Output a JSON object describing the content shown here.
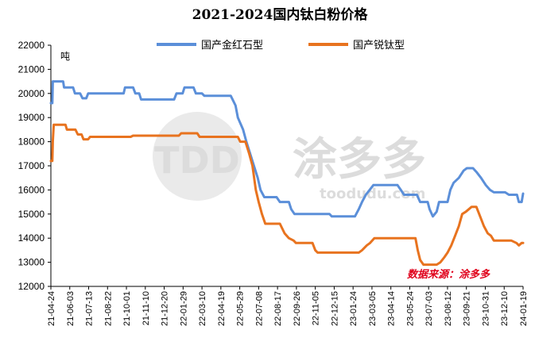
{
  "chart_data": {
    "type": "line",
    "title": "2021-2024国内钛白粉价格",
    "ylabel": "吨",
    "xlabel": "",
    "ylim": [
      12000,
      22000
    ],
    "yticks": [
      12000,
      13000,
      14000,
      15000,
      16000,
      17000,
      18000,
      19000,
      20000,
      21000,
      22000
    ],
    "x_range": [
      "2021-04-24",
      "2024-01-19"
    ],
    "xticks": [
      "21-04-24",
      "21-06-03",
      "21-07-13",
      "21-08-22",
      "21-10-01",
      "21-11-10",
      "21-12-20",
      "22-01-29",
      "22-03-10",
      "22-04-19",
      "22-05-29",
      "22-07-08",
      "22-08-17",
      "22-09-26",
      "22-11-05",
      "22-12-15",
      "23-01-24",
      "23-03-05",
      "23-04-14",
      "23-05-24",
      "23-07-03",
      "23-08-12",
      "23-09-21",
      "23-10-31",
      "23-12-10",
      "24-01-19"
    ],
    "legend_position": "top",
    "grid": false,
    "source_note": "数据来源：涂多多",
    "watermark": {
      "logo": "TDD",
      "text": "涂多多",
      "url": "toodudu.com"
    },
    "series": [
      {
        "name": "国产金红石型",
        "color": "#5b8fd9",
        "points": [
          [
            "2021-04-24",
            19600
          ],
          [
            "2021-04-27",
            19600
          ],
          [
            "2021-04-28",
            20500
          ],
          [
            "2021-05-20",
            20500
          ],
          [
            "2021-05-22",
            20250
          ],
          [
            "2021-06-10",
            20250
          ],
          [
            "2021-06-14",
            20000
          ],
          [
            "2021-06-25",
            20000
          ],
          [
            "2021-06-30",
            19800
          ],
          [
            "2021-07-08",
            19800
          ],
          [
            "2021-07-12",
            20000
          ],
          [
            "2021-09-25",
            20000
          ],
          [
            "2021-09-28",
            20250
          ],
          [
            "2021-10-15",
            20250
          ],
          [
            "2021-10-20",
            20000
          ],
          [
            "2021-10-28",
            20000
          ],
          [
            "2021-11-01",
            19750
          ],
          [
            "2022-01-10",
            19750
          ],
          [
            "2022-01-15",
            20000
          ],
          [
            "2022-01-28",
            20000
          ],
          [
            "2022-02-01",
            20250
          ],
          [
            "2022-02-20",
            20250
          ],
          [
            "2022-02-25",
            20000
          ],
          [
            "2022-03-10",
            20000
          ],
          [
            "2022-03-15",
            19900
          ],
          [
            "2022-05-10",
            19900
          ],
          [
            "2022-05-20",
            19500
          ],
          [
            "2022-05-25",
            19000
          ],
          [
            "2022-06-05",
            18500
          ],
          [
            "2022-06-12",
            18000
          ],
          [
            "2022-06-20",
            17500
          ],
          [
            "2022-06-28",
            17000
          ],
          [
            "2022-07-06",
            16500
          ],
          [
            "2022-07-12",
            16000
          ],
          [
            "2022-07-20",
            15700
          ],
          [
            "2022-08-15",
            15700
          ],
          [
            "2022-08-22",
            15500
          ],
          [
            "2022-09-10",
            15500
          ],
          [
            "2022-09-15",
            15200
          ],
          [
            "2022-09-22",
            15000
          ],
          [
            "2022-12-05",
            15000
          ],
          [
            "2022-12-10",
            14900
          ],
          [
            "2023-01-28",
            14900
          ],
          [
            "2023-02-05",
            15200
          ],
          [
            "2023-02-12",
            15500
          ],
          [
            "2023-02-20",
            15800
          ],
          [
            "2023-02-28",
            16000
          ],
          [
            "2023-03-08",
            16200
          ],
          [
            "2023-04-28",
            16200
          ],
          [
            "2023-05-05",
            16000
          ],
          [
            "2023-05-12",
            15800
          ],
          [
            "2023-06-08",
            15800
          ],
          [
            "2023-06-15",
            15500
          ],
          [
            "2023-07-01",
            15500
          ],
          [
            "2023-07-05",
            15200
          ],
          [
            "2023-07-12",
            14900
          ],
          [
            "2023-07-20",
            15100
          ],
          [
            "2023-07-25",
            15500
          ],
          [
            "2023-08-12",
            15500
          ],
          [
            "2023-08-18",
            16000
          ],
          [
            "2023-08-25",
            16300
          ],
          [
            "2023-09-05",
            16500
          ],
          [
            "2023-09-15",
            16800
          ],
          [
            "2023-09-22",
            16900
          ],
          [
            "2023-10-05",
            16900
          ],
          [
            "2023-10-12",
            16750
          ],
          [
            "2023-10-22",
            16500
          ],
          [
            "2023-11-01",
            16200
          ],
          [
            "2023-11-10",
            16000
          ],
          [
            "2023-11-18",
            15900
          ],
          [
            "2023-12-12",
            15900
          ],
          [
            "2023-12-20",
            15800
          ],
          [
            "2024-01-06",
            15800
          ],
          [
            "2024-01-10",
            15500
          ],
          [
            "2024-01-16",
            15500
          ],
          [
            "2024-01-19",
            15850
          ]
        ]
      },
      {
        "name": "国产锐钛型",
        "color": "#e8731f",
        "points": [
          [
            "2021-04-24",
            17200
          ],
          [
            "2021-04-27",
            17200
          ],
          [
            "2021-04-28",
            18000
          ],
          [
            "2021-04-30",
            18700
          ],
          [
            "2021-05-25",
            18700
          ],
          [
            "2021-05-28",
            18500
          ],
          [
            "2021-06-15",
            18500
          ],
          [
            "2021-06-20",
            18300
          ],
          [
            "2021-06-28",
            18300
          ],
          [
            "2021-07-02",
            18100
          ],
          [
            "2021-07-12",
            18100
          ],
          [
            "2021-07-16",
            18200
          ],
          [
            "2021-10-10",
            18200
          ],
          [
            "2021-10-15",
            18250
          ],
          [
            "2022-01-20",
            18250
          ],
          [
            "2022-01-25",
            18350
          ],
          [
            "2022-02-28",
            18350
          ],
          [
            "2022-03-05",
            18200
          ],
          [
            "2022-05-25",
            18200
          ],
          [
            "2022-05-30",
            18000
          ],
          [
            "2022-06-10",
            18000
          ],
          [
            "2022-06-18",
            17500
          ],
          [
            "2022-06-25",
            17000
          ],
          [
            "2022-07-02",
            16000
          ],
          [
            "2022-07-08",
            15500
          ],
          [
            "2022-07-15",
            15000
          ],
          [
            "2022-07-22",
            14600
          ],
          [
            "2022-08-22",
            14600
          ],
          [
            "2022-09-01",
            14200
          ],
          [
            "2022-09-10",
            14000
          ],
          [
            "2022-09-20",
            13900
          ],
          [
            "2022-09-25",
            13800
          ],
          [
            "2022-10-30",
            13800
          ],
          [
            "2022-11-05",
            13500
          ],
          [
            "2022-11-10",
            13400
          ],
          [
            "2023-02-05",
            13400
          ],
          [
            "2023-02-12",
            13500
          ],
          [
            "2023-02-22",
            13700
          ],
          [
            "2023-03-01",
            13800
          ],
          [
            "2023-03-10",
            14000
          ],
          [
            "2023-06-05",
            14000
          ],
          [
            "2023-06-10",
            13500
          ],
          [
            "2023-06-15",
            13100
          ],
          [
            "2023-06-22",
            12900
          ],
          [
            "2023-07-20",
            12900
          ],
          [
            "2023-07-28",
            13000
          ],
          [
            "2023-08-05",
            13200
          ],
          [
            "2023-08-12",
            13400
          ],
          [
            "2023-08-20",
            13700
          ],
          [
            "2023-08-28",
            14100
          ],
          [
            "2023-09-05",
            14500
          ],
          [
            "2023-09-12",
            15000
          ],
          [
            "2023-09-20",
            15100
          ],
          [
            "2023-10-02",
            15300
          ],
          [
            "2023-10-12",
            15300
          ],
          [
            "2023-10-18",
            15000
          ],
          [
            "2023-10-28",
            14500
          ],
          [
            "2023-11-05",
            14200
          ],
          [
            "2023-11-12",
            14100
          ],
          [
            "2023-11-18",
            13900
          ],
          [
            "2023-12-25",
            13900
          ],
          [
            "2024-01-05",
            13800
          ],
          [
            "2024-01-10",
            13700
          ],
          [
            "2024-01-16",
            13800
          ],
          [
            "2024-01-19",
            13800
          ]
        ]
      }
    ]
  }
}
